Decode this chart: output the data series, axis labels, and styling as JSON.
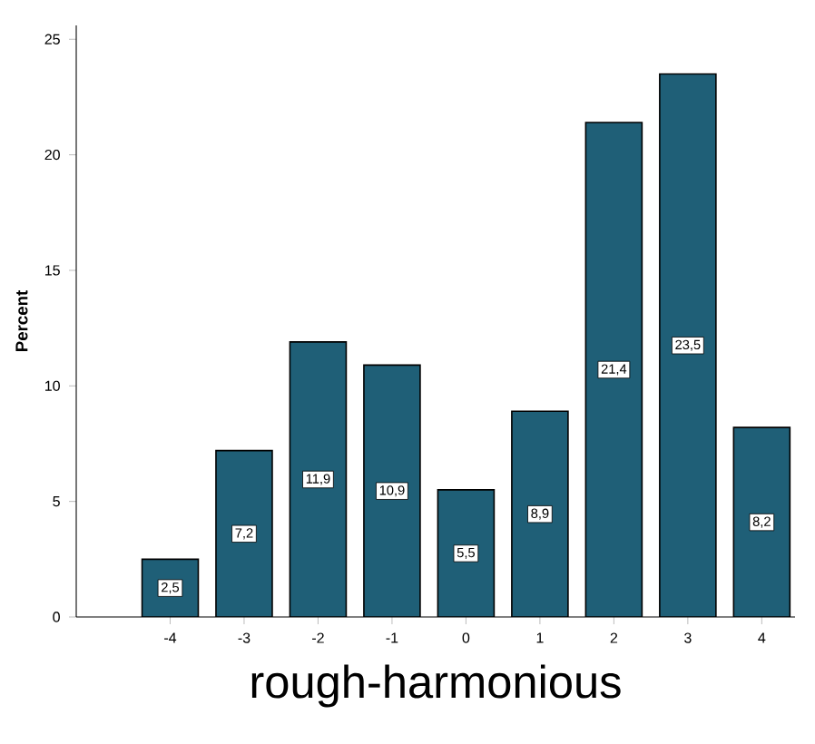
{
  "chart_data": {
    "type": "bar",
    "xlabel": "rough-harmonious",
    "ylabel": "Percent",
    "categories": [
      "-4",
      "-3",
      "-2",
      "-1",
      "0",
      "1",
      "2",
      "3",
      "4"
    ],
    "values": [
      2.5,
      7.2,
      11.9,
      10.9,
      5.5,
      8.9,
      21.4,
      23.5,
      8.2
    ],
    "value_labels": [
      "2,5",
      "7,2",
      "11,9",
      "10,9",
      "5,5",
      "8,9",
      "21,4",
      "23,5",
      "8,2"
    ],
    "color": "#1f5f77",
    "ylim": [
      0,
      25.6
    ],
    "yticks": [
      0,
      5,
      10,
      15,
      20,
      25
    ]
  }
}
